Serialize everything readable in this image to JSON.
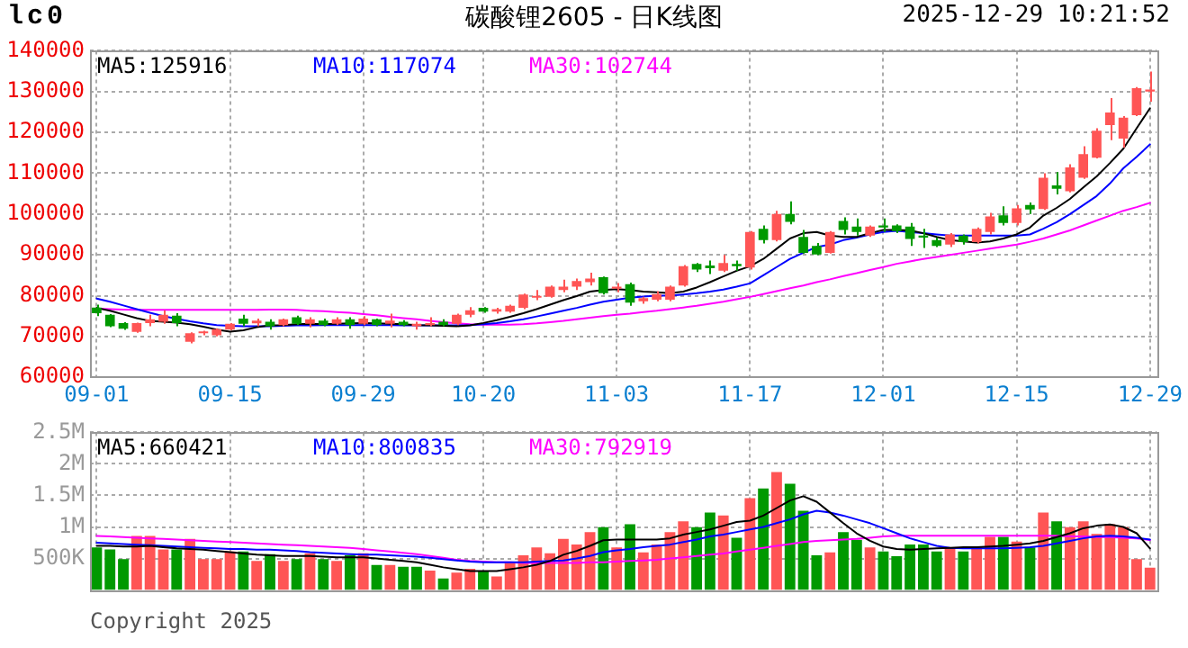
{
  "chart_data": [
    {
      "type": "candlestick",
      "title": "碳酸锂2605 - 日K线图",
      "annotations": [
        "lc0",
        "2025-12-29 10:21:52"
      ],
      "categories": [
        "09-01",
        null,
        null,
        null,
        null,
        null,
        null,
        null,
        null,
        null,
        "09-15",
        null,
        null,
        null,
        null,
        null,
        null,
        null,
        null,
        null,
        "09-29",
        null,
        null,
        null,
        null,
        null,
        null,
        null,
        null,
        "10-20",
        null,
        null,
        null,
        null,
        null,
        null,
        null,
        null,
        null,
        "11-03",
        null,
        null,
        null,
        null,
        null,
        null,
        null,
        null,
        null,
        "11-17",
        null,
        null,
        null,
        null,
        null,
        null,
        null,
        null,
        null,
        "12-01",
        null,
        null,
        null,
        null,
        null,
        null,
        null,
        null,
        null,
        "12-15",
        null,
        null,
        null,
        null,
        null,
        null,
        null,
        null,
        null,
        "12-29"
      ],
      "ohlc": [
        [
          77100,
          77800,
          75000,
          75700
        ],
        [
          75300,
          75500,
          72300,
          72500
        ],
        [
          73300,
          73500,
          71600,
          71900
        ],
        [
          71100,
          73400,
          70900,
          73300
        ],
        [
          73300,
          75300,
          72500,
          74200
        ],
        [
          73600,
          76400,
          73100,
          75300
        ],
        [
          75100,
          75700,
          72500,
          73300
        ],
        [
          68700,
          71000,
          68300,
          70800
        ],
        [
          70800,
          71400,
          70300,
          71200
        ],
        [
          70300,
          72000,
          70000,
          71800
        ],
        [
          71700,
          73300,
          71500,
          73100
        ],
        [
          74400,
          75300,
          72500,
          73100
        ],
        [
          73200,
          74400,
          72500,
          73900
        ],
        [
          73600,
          74200,
          71700,
          72500
        ],
        [
          72800,
          74400,
          72500,
          74200
        ],
        [
          74700,
          75100,
          72800,
          73100
        ],
        [
          73100,
          74700,
          72200,
          74200
        ],
        [
          73900,
          74400,
          72500,
          72800
        ],
        [
          73100,
          74700,
          72800,
          74200
        ],
        [
          74200,
          74700,
          71900,
          72800
        ],
        [
          73100,
          75000,
          72800,
          74400
        ],
        [
          74200,
          74400,
          72500,
          72800
        ],
        [
          73100,
          75600,
          72200,
          73900
        ],
        [
          73600,
          74000,
          72500,
          72800
        ],
        [
          72500,
          73600,
          71700,
          73100
        ],
        [
          72800,
          74700,
          72500,
          73300
        ],
        [
          73600,
          74200,
          72500,
          72800
        ],
        [
          73100,
          75600,
          72800,
          75300
        ],
        [
          75300,
          77200,
          74700,
          76400
        ],
        [
          77000,
          77200,
          75800,
          76100
        ],
        [
          76100,
          77000,
          75600,
          76700
        ],
        [
          76100,
          77800,
          75800,
          77500
        ],
        [
          77000,
          80500,
          76700,
          80300
        ],
        [
          79500,
          81400,
          78900,
          79900
        ],
        [
          79700,
          82500,
          79500,
          82200
        ],
        [
          81400,
          83900,
          80800,
          82200
        ],
        [
          82200,
          84200,
          81400,
          83600
        ],
        [
          83300,
          85600,
          82500,
          84200
        ],
        [
          84500,
          84700,
          80300,
          80600
        ],
        [
          81700,
          83100,
          80800,
          82200
        ],
        [
          82800,
          83200,
          77500,
          78300
        ],
        [
          78600,
          79700,
          78000,
          79400
        ],
        [
          79000,
          81100,
          78600,
          80400
        ],
        [
          79000,
          82500,
          78600,
          82200
        ],
        [
          82500,
          87500,
          82200,
          87200
        ],
        [
          87800,
          88000,
          85800,
          86400
        ],
        [
          87400,
          88600,
          85300,
          86700
        ],
        [
          86100,
          90000,
          85800,
          88000
        ],
        [
          87800,
          88600,
          86100,
          87200
        ],
        [
          86900,
          95800,
          86400,
          95600
        ],
        [
          96400,
          97200,
          92800,
          93600
        ],
        [
          93600,
          100800,
          93300,
          100000
        ],
        [
          100000,
          103100,
          97500,
          98100
        ],
        [
          94400,
          96100,
          90300,
          90500
        ],
        [
          92200,
          92900,
          89900,
          90100
        ],
        [
          90500,
          95800,
          90300,
          95600
        ],
        [
          98300,
          99200,
          95000,
          96100
        ],
        [
          96900,
          98900,
          94700,
          95600
        ],
        [
          94700,
          97200,
          94400,
          96900
        ],
        [
          97200,
          98900,
          95600,
          96700
        ],
        [
          97200,
          97500,
          95300,
          95800
        ],
        [
          96900,
          97800,
          92200,
          93900
        ],
        [
          94700,
          96400,
          91700,
          94200
        ],
        [
          93600,
          94200,
          91900,
          92200
        ],
        [
          92500,
          95300,
          91900,
          95000
        ],
        [
          94700,
          95000,
          92500,
          93100
        ],
        [
          93100,
          96700,
          92800,
          96400
        ],
        [
          95600,
          100300,
          95000,
          99400
        ],
        [
          99700,
          101900,
          97200,
          97800
        ],
        [
          97800,
          102200,
          97200,
          101400
        ],
        [
          102200,
          102800,
          100000,
          101100
        ],
        [
          101200,
          110000,
          101000,
          108900
        ],
        [
          107000,
          110300,
          104800,
          106200
        ],
        [
          105600,
          112200,
          105300,
          111400
        ],
        [
          108900,
          116600,
          108600,
          114700
        ],
        [
          113800,
          121000,
          113600,
          120400
        ],
        [
          121800,
          128400,
          118100,
          124900
        ],
        [
          118500,
          124000,
          116300,
          123600
        ],
        [
          124200,
          131100,
          124000,
          130800
        ],
        [
          130000,
          134900,
          127500,
          130500
        ]
      ],
      "colors": [
        "#009900",
        "#009900",
        "#009900",
        "#ff5555",
        "#ff5555",
        "#ff5555",
        "#009900",
        "#ff5555",
        "#ff5555",
        "#ff5555",
        "#ff5555",
        "#009900",
        "#ff5555",
        "#009900",
        "#ff5555",
        "#009900",
        "#ff5555",
        "#009900",
        "#ff5555",
        "#009900",
        "#ff5555",
        "#009900",
        "#ff5555",
        "#009900",
        "#ff5555",
        "#ff5555",
        "#009900",
        "#ff5555",
        "#ff5555",
        "#009900",
        "#ff5555",
        "#ff5555",
        "#ff5555",
        "#ff5555",
        "#ff5555",
        "#ff5555",
        "#ff5555",
        "#ff5555",
        "#009900",
        "#ff5555",
        "#009900",
        "#ff5555",
        "#ff5555",
        "#ff5555",
        "#ff5555",
        "#009900",
        "#009900",
        "#ff5555",
        "#009900",
        "#ff5555",
        "#009900",
        "#ff5555",
        "#009900",
        "#009900",
        "#009900",
        "#ff5555",
        "#009900",
        "#009900",
        "#ff5555",
        "#009900",
        "#009900",
        "#009900",
        "#009900",
        "#009900",
        "#ff5555",
        "#009900",
        "#ff5555",
        "#ff5555",
        "#009900",
        "#ff5555",
        "#009900",
        "#ff5555",
        "#009900",
        "#ff5555",
        "#ff5555",
        "#ff5555",
        "#ff5555",
        "#ff5555",
        "#ff5555",
        "#ff5555"
      ],
      "series": [
        {
          "type": "line",
          "name": "MA5:125916",
          "color": "#000000",
          "values": [
            77000,
            76300,
            75400,
            74500,
            73800,
            73600,
            73400,
            73000,
            72400,
            71700,
            71200,
            71500,
            72300,
            72700,
            72800,
            73000,
            73100,
            73000,
            73100,
            73200,
            73300,
            73200,
            73100,
            73000,
            72800,
            72700,
            72600,
            72500,
            72700,
            73300,
            74000,
            74800,
            75700,
            76700,
            77800,
            78900,
            79900,
            81000,
            81400,
            81600,
            81400,
            81000,
            80800,
            80600,
            81000,
            82000,
            83300,
            84700,
            86100,
            87200,
            89000,
            91500,
            94000,
            95300,
            95600,
            94700,
            94400,
            94400,
            95300,
            96100,
            96100,
            96000,
            95300,
            94400,
            93600,
            93300,
            93000,
            93300,
            94000,
            95000,
            96700,
            99600,
            101500,
            103700,
            106500,
            109200,
            112500,
            116000,
            121000,
            125916
          ]
        },
        {
          "type": "line",
          "name": "MA10:117074",
          "color": "#0000ff",
          "values": [
            79300,
            78500,
            77600,
            76700,
            75800,
            75000,
            74300,
            73700,
            73200,
            72800,
            72600,
            72500,
            72500,
            72500,
            72600,
            72700,
            72700,
            72800,
            72800,
            72800,
            72800,
            72800,
            72800,
            72700,
            72700,
            72700,
            72700,
            72700,
            72800,
            73000,
            73300,
            73700,
            74200,
            74900,
            75600,
            76300,
            77000,
            77800,
            78500,
            79000,
            79500,
            79800,
            80000,
            80000,
            80300,
            80600,
            81000,
            81500,
            82200,
            83000,
            85000,
            87000,
            89000,
            90500,
            91900,
            92500,
            93600,
            94200,
            95000,
            95600,
            95900,
            95600,
            95300,
            95000,
            94700,
            94700,
            94700,
            94700,
            94700,
            94700,
            95000,
            96400,
            98000,
            100000,
            102200,
            104400,
            107500,
            111200,
            114000,
            117074
          ]
        },
        {
          "type": "line",
          "name": "MA30:102744",
          "color": "#ff00ff",
          "values": [
            76800,
            76700,
            76600,
            76500,
            76500,
            76500,
            76500,
            76500,
            76500,
            76500,
            76500,
            76500,
            76500,
            76600,
            76600,
            76500,
            76300,
            76200,
            76000,
            75800,
            75500,
            75200,
            74800,
            74500,
            74200,
            73800,
            73500,
            73200,
            73000,
            72900,
            72900,
            72900,
            73000,
            73200,
            73500,
            73800,
            74200,
            74600,
            75000,
            75300,
            75600,
            76000,
            76300,
            76700,
            77100,
            77500,
            78000,
            78500,
            79100,
            79700,
            80400,
            81100,
            81800,
            82500,
            83300,
            84000,
            84800,
            85500,
            86300,
            87000,
            87800,
            88400,
            89000,
            89500,
            90000,
            90500,
            91000,
            91500,
            92000,
            92500,
            93200,
            94000,
            95000,
            96000,
            97200,
            98400,
            99600,
            100800,
            101700,
            102744
          ]
        }
      ],
      "ylim": [
        60000,
        140000
      ],
      "yticks": [
        60000,
        70000,
        80000,
        90000,
        100000,
        110000,
        120000,
        130000,
        140000
      ],
      "grid": true,
      "legend": "top left",
      "marker": "none"
    },
    {
      "type": "bar",
      "annotations": [
        "Copyright 2025"
      ],
      "tick_labels": "y",
      "categories": [
        null,
        null,
        null,
        null,
        null,
        null,
        null,
        null,
        null,
        null,
        null,
        null,
        null,
        null,
        null,
        null,
        null,
        null,
        null,
        null,
        null,
        null,
        null,
        null,
        null,
        null,
        null,
        null,
        null,
        null,
        null,
        null,
        null,
        null,
        null,
        null,
        null,
        null,
        null,
        null,
        null,
        null,
        null,
        null,
        null,
        null,
        null,
        null,
        null,
        null,
        null,
        null,
        null,
        null,
        null,
        null,
        null,
        null,
        null,
        null,
        null,
        null,
        null,
        null,
        null,
        null,
        null,
        null,
        null,
        null,
        null,
        null,
        null,
        null,
        null,
        null,
        null,
        null,
        null,
        null
      ],
      "series": [
        {
          "type": "bar",
          "values": [
            675000,
            644000,
            491000,
            859000,
            859000,
            644000,
            644000,
            813000,
            491000,
            491000,
            613000,
            613000,
            460000,
            567000,
            460000,
            491000,
            583000,
            491000,
            460000,
            552000,
            583000,
            399000,
            399000,
            368000,
            368000,
            307000,
            184000,
            276000,
            337000,
            307000,
            215000,
            429000,
            552000,
            675000,
            583000,
            813000,
            721000,
            920000,
            997000,
            675000,
            1043000,
            598000,
            721000,
            920000,
            1089000,
            997000,
            1227000,
            1181000,
            828000,
            1457000,
            1610000,
            1871000,
            1687000,
            1257000,
            552000,
            598000,
            920000,
            797000,
            675000,
            613000,
            537000,
            721000,
            721000,
            613000,
            675000,
            613000,
            675000,
            843000,
            843000,
            767000,
            675000,
            1227000,
            1089000,
            997000,
            1089000,
            889000,
            1043000,
            997000,
            491000,
            353000
          ],
          "colors": [
            "#009900",
            "#009900",
            "#009900",
            "#ff5555",
            "#ff5555",
            "#ff5555",
            "#009900",
            "#ff5555",
            "#ff5555",
            "#ff5555",
            "#ff5555",
            "#009900",
            "#ff5555",
            "#009900",
            "#ff5555",
            "#009900",
            "#ff5555",
            "#009900",
            "#ff5555",
            "#009900",
            "#ff5555",
            "#009900",
            "#ff5555",
            "#009900",
            "#009900",
            "#ff5555",
            "#009900",
            "#ff5555",
            "#ff5555",
            "#009900",
            "#ff5555",
            "#ff5555",
            "#ff5555",
            "#ff5555",
            "#ff5555",
            "#ff5555",
            "#ff5555",
            "#ff5555",
            "#009900",
            "#ff5555",
            "#009900",
            "#ff5555",
            "#ff5555",
            "#ff5555",
            "#ff5555",
            "#009900",
            "#009900",
            "#ff5555",
            "#009900",
            "#ff5555",
            "#009900",
            "#ff5555",
            "#009900",
            "#009900",
            "#009900",
            "#ff5555",
            "#009900",
            "#009900",
            "#ff5555",
            "#009900",
            "#009900",
            "#009900",
            "#009900",
            "#009900",
            "#ff5555",
            "#009900",
            "#ff5555",
            "#ff5555",
            "#009900",
            "#ff5555",
            "#009900",
            "#ff5555",
            "#009900",
            "#ff5555",
            "#ff5555",
            "#ff5555",
            "#ff5555",
            "#ff5555",
            "#ff5555",
            "#ff5555"
          ]
        },
        {
          "type": "line",
          "name": "MA5:660421",
          "color": "#000000",
          "values": [
            700000,
            700000,
            690000,
            690000,
            700000,
            680000,
            660000,
            650000,
            640000,
            620000,
            600000,
            580000,
            560000,
            550000,
            540000,
            540000,
            540000,
            530000,
            520000,
            520000,
            520000,
            500000,
            480000,
            460000,
            440000,
            400000,
            360000,
            330000,
            300000,
            300000,
            300000,
            330000,
            360000,
            400000,
            460000,
            560000,
            620000,
            700000,
            790000,
            800000,
            800000,
            800000,
            800000,
            820000,
            880000,
            920000,
            960000,
            1020000,
            1080000,
            1100000,
            1180000,
            1300000,
            1420000,
            1487000,
            1400000,
            1230000,
            1060000,
            900000,
            780000,
            690000,
            650000,
            640000,
            650000,
            660000,
            670000,
            680000,
            680000,
            690000,
            700000,
            720000,
            740000,
            780000,
            840000,
            900000,
            980000,
            1020000,
            1040000,
            1000000,
            900000,
            660421
          ]
        },
        {
          "type": "line",
          "name": "MA10:800835",
          "color": "#0000ff",
          "values": [
            750000,
            740000,
            730000,
            720000,
            710000,
            700000,
            690000,
            680000,
            670000,
            660000,
            650000,
            650000,
            640000,
            640000,
            630000,
            620000,
            600000,
            590000,
            580000,
            570000,
            560000,
            560000,
            550000,
            540000,
            530000,
            510000,
            490000,
            470000,
            450000,
            440000,
            440000,
            440000,
            440000,
            450000,
            460000,
            470000,
            500000,
            540000,
            600000,
            630000,
            650000,
            680000,
            700000,
            720000,
            760000,
            800000,
            850000,
            880000,
            920000,
            960000,
            1000000,
            1060000,
            1120000,
            1200000,
            1257000,
            1230000,
            1180000,
            1120000,
            1060000,
            980000,
            900000,
            820000,
            760000,
            700000,
            670000,
            660000,
            660000,
            660000,
            660000,
            670000,
            680000,
            700000,
            740000,
            780000,
            820000,
            850000,
            860000,
            850000,
            830000,
            800835
          ]
        },
        {
          "type": "line",
          "name": "MA30:792919",
          "color": "#ff00ff",
          "values": [
            859000,
            850000,
            840000,
            830000,
            820000,
            810000,
            800000,
            790000,
            780000,
            770000,
            760000,
            750000,
            740000,
            730000,
            720000,
            710000,
            700000,
            690000,
            680000,
            670000,
            650000,
            630000,
            610000,
            590000,
            570000,
            540000,
            510000,
            480000,
            460000,
            450000,
            440000,
            440000,
            430000,
            430000,
            430000,
            430000,
            430000,
            440000,
            440000,
            450000,
            460000,
            470000,
            480000,
            500000,
            520000,
            540000,
            560000,
            580000,
            610000,
            640000,
            670000,
            700000,
            730000,
            760000,
            780000,
            790000,
            800000,
            810000,
            830000,
            850000,
            860000,
            860000,
            860000,
            860000,
            860000,
            860000,
            860000,
            860000,
            860000,
            860000,
            860000,
            860000,
            860000,
            850000,
            850000,
            840000,
            840000,
            830000,
            820000,
            792919
          ]
        }
      ],
      "ylim": [
        0,
        2500000
      ],
      "yticks": [
        {
          "value": 500000,
          "label": "500K"
        },
        {
          "value": 1000000,
          "label": "1M"
        },
        {
          "value": 1500000,
          "label": "1.5M"
        },
        {
          "value": 2000000,
          "label": "2M"
        },
        {
          "value": 2500000,
          "label": "2.5M"
        }
      ],
      "grid": true,
      "legend": "top left",
      "marker": "none"
    }
  ]
}
